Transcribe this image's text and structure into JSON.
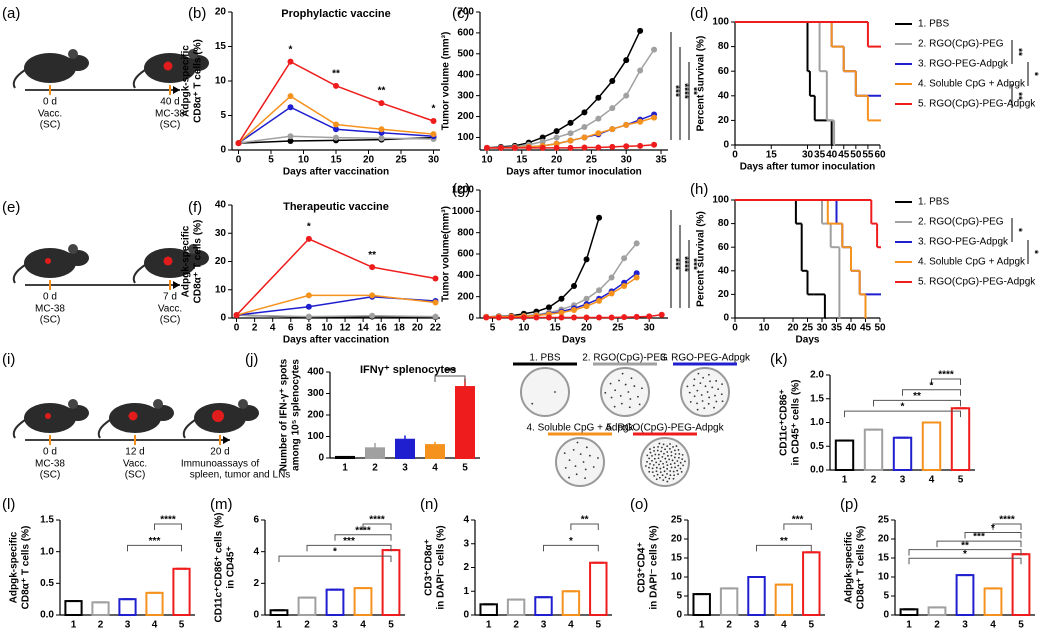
{
  "schematics": [
    {
      "label": "(a)",
      "steps": [
        {
          "day": "0 d",
          "notes": [
            "Vacc.",
            "(SC)"
          ]
        },
        {
          "day": "40 d",
          "notes": [
            "MC-38",
            "(SC)"
          ]
        }
      ]
    },
    {
      "label": "(e)",
      "steps": [
        {
          "day": "0 d",
          "notes": [
            "MC-38",
            "(SC)"
          ]
        },
        {
          "day": "7 d",
          "notes": [
            "Vacc.",
            "(SC)"
          ]
        }
      ]
    },
    {
      "label": "(i)",
      "steps": [
        {
          "day": "0 d",
          "notes": [
            "MC-38",
            "(SC)"
          ]
        },
        {
          "day": "12 d",
          "notes": [
            "Vacc.",
            "(SC)"
          ]
        },
        {
          "day": "20 d",
          "notes": [
            "Immunoassays of",
            "spleen, tumor and LNs"
          ]
        }
      ]
    }
  ],
  "elispot": {
    "labels": [
      "1. PBS",
      "2. RGO(CpG)-PEG",
      "3. RGO-PEG-Adpgk",
      "4. Soluble CpG + Adpgk",
      "5. RGO(CpG)-PEG-Adpgk"
    ]
  },
  "chart_data": [
    {
      "type": "line",
      "label": "(b)",
      "title": "Prophylactic vaccine",
      "xlabel": "Days after vaccination",
      "ylabel": [
        "Adpgk-specific",
        "CD8α⁺ T cells (%)"
      ],
      "x": [
        0,
        8,
        15,
        22,
        30
      ],
      "xlim": [
        -1,
        31
      ],
      "xticks": [
        0,
        5,
        10,
        15,
        20,
        25,
        30
      ],
      "ylim": [
        0,
        20
      ],
      "yticks": [
        0,
        5,
        10,
        15,
        20
      ],
      "series": [
        {
          "color": "#000000",
          "values": [
            1,
            1.3,
            1.4,
            1.5,
            1.8
          ]
        },
        {
          "color": "#a0a0a0",
          "values": [
            1,
            2,
            1.8,
            1.7,
            1.6
          ]
        },
        {
          "color": "#1f1fd0",
          "values": [
            1,
            6.2,
            3,
            2.5,
            2
          ]
        },
        {
          "color": "#f5921e",
          "values": [
            1,
            7.8,
            3.7,
            3,
            2.3
          ]
        },
        {
          "color": "#ee1c1c",
          "values": [
            1,
            12.8,
            9.3,
            6.8,
            4.2
          ]
        }
      ],
      "annotations": [
        {
          "x": 8,
          "text": "*"
        },
        {
          "x": 15,
          "text": "**"
        },
        {
          "x": 22,
          "text": "**"
        },
        {
          "x": 30,
          "text": "*"
        }
      ]
    },
    {
      "type": "line",
      "label": "(c)",
      "xlabel": "Days after tumor inoculation",
      "ylabel": [
        "Tumor volume (mm³)"
      ],
      "x": [
        10,
        12,
        14,
        16,
        18,
        20,
        22,
        24,
        26,
        28,
        30,
        32,
        34
      ],
      "xlim": [
        9,
        36
      ],
      "xticks": [
        10,
        15,
        20,
        25,
        30,
        35
      ],
      "ylim": [
        40,
        700
      ],
      "yticks": [
        100,
        200,
        300,
        400,
        500,
        600,
        700
      ],
      "series": [
        {
          "color": "#000000",
          "values": [
            50,
            55,
            60,
            75,
            100,
            130,
            170,
            220,
            290,
            370,
            470,
            610,
            null
          ]
        },
        {
          "color": "#a0a0a0",
          "values": [
            50,
            52,
            55,
            65,
            80,
            100,
            120,
            150,
            190,
            240,
            300,
            420,
            520
          ]
        },
        {
          "color": "#1f1fd0",
          "values": [
            50,
            50,
            52,
            55,
            60,
            70,
            85,
            100,
            115,
            140,
            160,
            185,
            210
          ]
        },
        {
          "color": "#f5921e",
          "values": [
            50,
            50,
            52,
            55,
            60,
            70,
            85,
            100,
            120,
            140,
            160,
            175,
            195
          ]
        },
        {
          "color": "#ee1c1c",
          "values": [
            50,
            50,
            50,
            50,
            50,
            50,
            50,
            52,
            52,
            55,
            58,
            60,
            65
          ]
        }
      ],
      "significance": [
        "***",
        "****",
        "**"
      ]
    },
    {
      "type": "survival",
      "label": "(d)",
      "xlabel": "Days after tumor inoculation",
      "ylabel": [
        "Percent survival (%)"
      ],
      "xlim": [
        0,
        60
      ],
      "xticks": [
        0,
        15,
        30,
        35,
        40,
        45,
        50,
        55,
        60
      ],
      "ylim": [
        0,
        100
      ],
      "yticks": [
        0,
        20,
        40,
        60,
        80,
        100
      ],
      "series": [
        {
          "name": "1. PBS",
          "color": "#000000",
          "x": [
            0,
            30,
            31,
            33,
            40
          ],
          "values": [
            100,
            60,
            40,
            20,
            0
          ]
        },
        {
          "name": "2. RGO(CpG)-PEG",
          "color": "#a0a0a0",
          "x": [
            0,
            35,
            38,
            41
          ],
          "values": [
            100,
            60,
            20,
            0
          ]
        },
        {
          "name": "3. RGO-PEG-Adpgk",
          "color": "#1f1fd0",
          "x": [
            0,
            40,
            45,
            50,
            60
          ],
          "values": [
            100,
            80,
            60,
            40,
            40
          ]
        },
        {
          "name": "4. Soluble CpG + Adpgk",
          "color": "#f5921e",
          "x": [
            0,
            40,
            45,
            50,
            55,
            60
          ],
          "values": [
            100,
            80,
            60,
            40,
            20,
            20
          ]
        },
        {
          "name": "5. RGO(CpG)-PEG-Adpgk",
          "color": "#ee1c1c",
          "x": [
            0,
            55,
            60
          ],
          "values": [
            100,
            80,
            80
          ]
        }
      ],
      "significance": [
        "**",
        "*",
        "**"
      ]
    },
    {
      "type": "line",
      "label": "(f)",
      "title": "Therapeutic vaccine",
      "xlabel": "Days after vaccination",
      "ylabel": [
        "Adpgk-specific",
        "CD8α⁺ T cells (%)"
      ],
      "x": [
        0,
        8,
        15,
        22
      ],
      "xlim": [
        -0.5,
        22.5
      ],
      "xticks": [
        0,
        2,
        4,
        6,
        8,
        10,
        12,
        14,
        16,
        18,
        20,
        22
      ],
      "ylim": [
        0,
        40
      ],
      "yticks": [
        0,
        10,
        20,
        30,
        40
      ],
      "series": [
        {
          "color": "#000000",
          "values": [
            1,
            0.3,
            0.5,
            0.3
          ]
        },
        {
          "color": "#a0a0a0",
          "values": [
            1,
            0.5,
            0.8,
            0.5
          ]
        },
        {
          "color": "#1f1fd0",
          "values": [
            1,
            4,
            7.5,
            6
          ]
        },
        {
          "color": "#f5921e",
          "values": [
            1,
            8,
            8,
            5.5
          ]
        },
        {
          "color": "#ee1c1c",
          "values": [
            1,
            28,
            18,
            14
          ]
        }
      ],
      "annotations": [
        {
          "x": 8,
          "text": "*"
        },
        {
          "x": 15,
          "text": "**"
        }
      ]
    },
    {
      "type": "line",
      "label": "(g)",
      "xlabel": "Days",
      "ylabel": [
        "Tumor volume(mm³)"
      ],
      "x": [
        4,
        6,
        8,
        10,
        12,
        14,
        16,
        18,
        20,
        22,
        24,
        26,
        28,
        30,
        32
      ],
      "xlim": [
        3,
        33
      ],
      "xticks": [
        5,
        10,
        15,
        20,
        25,
        30
      ],
      "ylim": [
        0,
        1200
      ],
      "yticks": [
        0,
        200,
        400,
        600,
        800,
        1000,
        1200
      ],
      "series": [
        {
          "color": "#000000",
          "values": [
            10,
            15,
            20,
            40,
            60,
            100,
            180,
            300,
            550,
            940,
            null,
            null,
            null,
            null,
            null
          ]
        },
        {
          "color": "#a0a0a0",
          "values": [
            10,
            12,
            15,
            20,
            30,
            50,
            80,
            120,
            180,
            260,
            380,
            560,
            700,
            null,
            null
          ]
        },
        {
          "color": "#1f1fd0",
          "values": [
            10,
            12,
            14,
            18,
            25,
            40,
            60,
            90,
            130,
            180,
            250,
            330,
            420,
            null,
            null
          ]
        },
        {
          "color": "#f5921e",
          "values": [
            10,
            12,
            14,
            18,
            24,
            35,
            50,
            75,
            110,
            160,
            230,
            300,
            380,
            null,
            null
          ]
        },
        {
          "color": "#ee1c1c",
          "values": [
            5,
            5,
            5,
            5,
            5,
            5,
            5,
            5,
            5,
            5,
            5,
            8,
            10,
            15,
            30
          ]
        }
      ],
      "significance": [
        "***",
        "****",
        "***"
      ]
    },
    {
      "type": "survival",
      "label": "(h)",
      "xlabel": "Days",
      "ylabel": [
        "Percent survival (%)"
      ],
      "xlim": [
        0,
        50
      ],
      "xticks": [
        0,
        10,
        20,
        25,
        30,
        35,
        40,
        45,
        50
      ],
      "ylim": [
        0,
        100
      ],
      "yticks": [
        0,
        20,
        40,
        60,
        80,
        100
      ],
      "series": [
        {
          "name": "1. PBS",
          "color": "#000000",
          "x": [
            0,
            21,
            23,
            25,
            27,
            31
          ],
          "values": [
            100,
            80,
            40,
            20,
            20,
            0
          ]
        },
        {
          "name": "2. RGO(CpG)-PEG",
          "color": "#a0a0a0",
          "x": [
            0,
            30,
            33,
            36
          ],
          "values": [
            100,
            80,
            60,
            0
          ]
        },
        {
          "name": "3. RGO-PEG-Adpgk",
          "color": "#1f1fd0",
          "x": [
            0,
            35,
            37,
            40,
            43,
            50
          ],
          "values": [
            100,
            80,
            60,
            40,
            20,
            20
          ]
        },
        {
          "name": "4. Soluble CpG + Adpgk",
          "color": "#f5921e",
          "x": [
            0,
            32,
            37,
            40,
            43,
            45
          ],
          "values": [
            100,
            80,
            60,
            40,
            20,
            0
          ]
        },
        {
          "name": "5. RGO(CpG)-PEG-Adpgk",
          "color": "#ee1c1c",
          "x": [
            0,
            47,
            49,
            50
          ],
          "values": [
            100,
            80,
            60,
            60
          ]
        }
      ],
      "significance": [
        "*",
        "*"
      ]
    },
    {
      "type": "bar",
      "label": "(j)",
      "title": "IFNγ⁺ splenocytes",
      "ylabel": [
        "Number of IFN-γ⁺ spots",
        "among 10⁵ splenocytes"
      ],
      "filled": true,
      "categories": [
        "1",
        "2",
        "3",
        "4",
        "5"
      ],
      "values": [
        5,
        45,
        85,
        60,
        330
      ],
      "errors": [
        3,
        25,
        20,
        15,
        40
      ],
      "colors": [
        "#000000",
        "#a0a0a0",
        "#1f1fd0",
        "#f5921e",
        "#ee1c1c"
      ],
      "ylim": [
        0,
        400
      ],
      "yticks": [
        0,
        100,
        200,
        300,
        400
      ],
      "significance": [
        "***"
      ]
    },
    {
      "type": "bar",
      "label": "(k)",
      "ylabel": [
        "CD11c⁺CD86⁺",
        "in CD45⁺ cells (%)"
      ],
      "filled": false,
      "categories": [
        "1",
        "2",
        "3",
        "4",
        "5"
      ],
      "values": [
        0.62,
        0.85,
        0.68,
        1.0,
        1.3
      ],
      "colors": [
        "#000000",
        "#a0a0a0",
        "#1f1fd0",
        "#f5921e",
        "#ee1c1c"
      ],
      "ylim": [
        0,
        2
      ],
      "yticks": [
        {
          "value": 0,
          "label": "0.0"
        },
        {
          "value": 0.5,
          "label": "0.5"
        },
        {
          "value": 1,
          "label": "1.0"
        },
        {
          "value": 1.5,
          "label": "1.5"
        },
        {
          "value": 2,
          "label": "2.0"
        }
      ],
      "significance": [
        "****",
        "*",
        "**",
        "*"
      ]
    },
    {
      "type": "bar",
      "label": "(l)",
      "ylabel": [
        "Adpgk-specific",
        "CD8α⁺ T cells (%)"
      ],
      "filled": false,
      "categories": [
        "1",
        "2",
        "3",
        "4",
        "5"
      ],
      "values": [
        0.22,
        0.2,
        0.25,
        0.35,
        0.73
      ],
      "colors": [
        "#000000",
        "#a0a0a0",
        "#1f1fd0",
        "#f5921e",
        "#ee1c1c"
      ],
      "ylim": [
        0,
        1.5
      ],
      "yticks": [
        {
          "value": 0,
          "label": "0.0"
        },
        {
          "value": 0.5,
          "label": "0.5"
        },
        {
          "value": 1,
          "label": "1.0"
        },
        {
          "value": 1.5,
          "label": "1.5"
        }
      ],
      "significance": [
        "****",
        "***"
      ]
    },
    {
      "type": "bar",
      "label": "(m)",
      "ylabel": [
        "CD11c⁺CD86⁺ cells (%)",
        "in CD45⁺"
      ],
      "filled": false,
      "categories": [
        "1",
        "2",
        "3",
        "4",
        "5"
      ],
      "values": [
        0.3,
        1.1,
        1.6,
        1.7,
        4.1
      ],
      "colors": [
        "#000000",
        "#a0a0a0",
        "#1f1fd0",
        "#f5921e",
        "#ee1c1c"
      ],
      "ylim": [
        0,
        6
      ],
      "yticks": [
        0,
        2,
        4,
        6
      ],
      "significance": [
        "****",
        "****",
        "***",
        "*"
      ]
    },
    {
      "type": "bar",
      "label": "(n)",
      "ylabel": [
        "CD3⁺CD8α⁺",
        "in DAPI⁻ cells (%)"
      ],
      "filled": false,
      "categories": [
        "1",
        "2",
        "3",
        "4",
        "5"
      ],
      "values": [
        0.45,
        0.65,
        0.75,
        1.0,
        2.2
      ],
      "colors": [
        "#000000",
        "#a0a0a0",
        "#1f1fd0",
        "#f5921e",
        "#ee1c1c"
      ],
      "ylim": [
        0,
        4
      ],
      "yticks": [
        0,
        1,
        2,
        3,
        4
      ],
      "significance": [
        "**",
        "*"
      ]
    },
    {
      "type": "bar",
      "label": "(o)",
      "ylabel": [
        "CD3⁺CD4⁺",
        "in DAPI⁻ cells (%)"
      ],
      "filled": false,
      "categories": [
        "1",
        "2",
        "3",
        "4",
        "5"
      ],
      "values": [
        5.5,
        7,
        10,
        8,
        16.5
      ],
      "colors": [
        "#000000",
        "#a0a0a0",
        "#1f1fd0",
        "#f5921e",
        "#ee1c1c"
      ],
      "ylim": [
        0,
        25
      ],
      "yticks": [
        0,
        5,
        10,
        15,
        20,
        25
      ],
      "significance": [
        "***",
        "**"
      ]
    },
    {
      "type": "bar",
      "label": "(p)",
      "ylabel": [
        "Adpgk-specific",
        "CD8α⁺ T cells (%)"
      ],
      "filled": false,
      "categories": [
        "1",
        "2",
        "3",
        "4",
        "5"
      ],
      "values": [
        1.5,
        2,
        10.5,
        7,
        16
      ],
      "colors": [
        "#000000",
        "#a0a0a0",
        "#1f1fd0",
        "#f5921e",
        "#ee1c1c"
      ],
      "ylim": [
        0,
        25
      ],
      "yticks": [
        0,
        5,
        10,
        15,
        20,
        25
      ],
      "significance": [
        "****",
        "*",
        "***",
        "**",
        "*"
      ]
    }
  ]
}
